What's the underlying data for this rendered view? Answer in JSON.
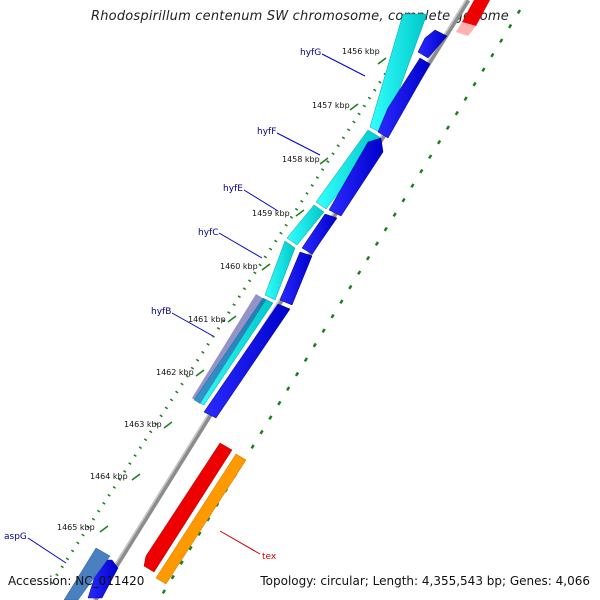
{
  "title": "Rhodospirillum centenum SW chromosome, complete genome",
  "footer": {
    "accession": "Accession: NC_011420",
    "summary": "Topology: circular; Length: 4,355,543 bp; Genes: 4,066"
  },
  "scale_labels": [
    "1456 kbp",
    "1457 kbp",
    "1458 kbp",
    "1459 kbp",
    "1460 kbp",
    "1461 kbp",
    "1462 kbp",
    "1463 kbp",
    "1464 kbp",
    "1465 kbp"
  ],
  "gene_labels": [
    {
      "name": "hyfG",
      "color": "#00008b"
    },
    {
      "name": "hyfF",
      "color": "#00008b"
    },
    {
      "name": "hyfE",
      "color": "#00008b"
    },
    {
      "name": "hyfC",
      "color": "#00008b"
    },
    {
      "name": "hyfB",
      "color": "#00008b"
    },
    {
      "name": "aspG",
      "color": "#00008b"
    },
    {
      "name": "tex",
      "color": "#d00000"
    }
  ],
  "colors": {
    "backbone": "#8c8c8c",
    "forward_cds": "#00e5e5",
    "reverse_cds": "#0000ee",
    "red_cds": "#ee0000",
    "orange_cds": "#ff9900",
    "steel_cds": "#4a7fc0",
    "gc_dots": "#1a7f1a"
  }
}
